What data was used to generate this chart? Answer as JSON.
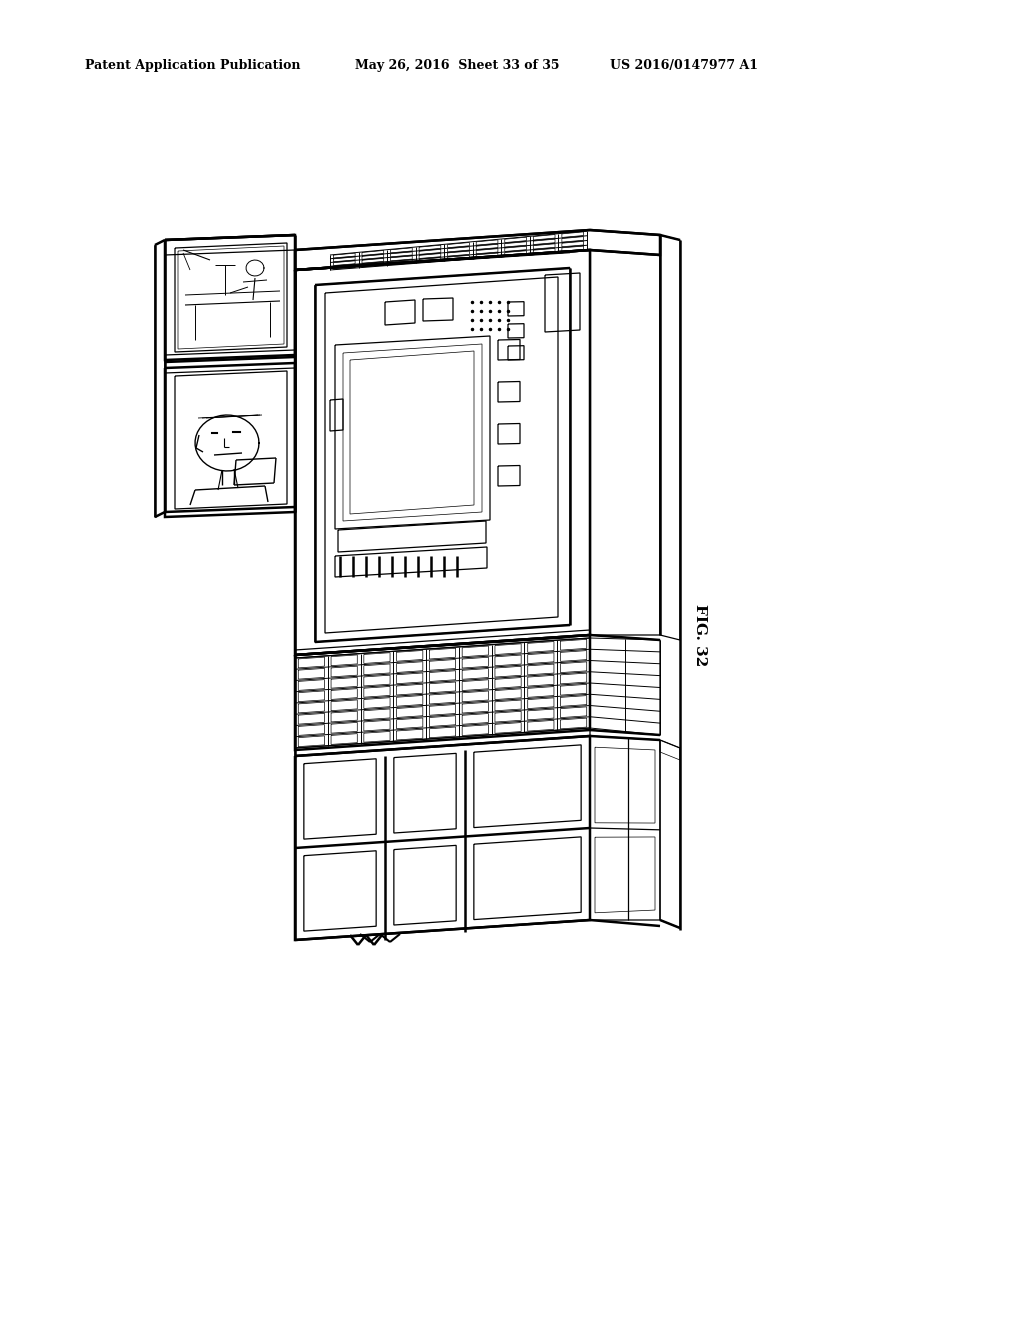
{
  "background_color": "#ffffff",
  "header_text_left": "Patent Application Publication",
  "header_text_mid": "May 26, 2016  Sheet 33 of 35",
  "header_text_right": "US 2016/0147977 A1",
  "figure_label": "FIG. 32",
  "line_color": "#000000",
  "lw_main": 1.8,
  "lw_thin": 0.9,
  "lw_grid": 0.7
}
